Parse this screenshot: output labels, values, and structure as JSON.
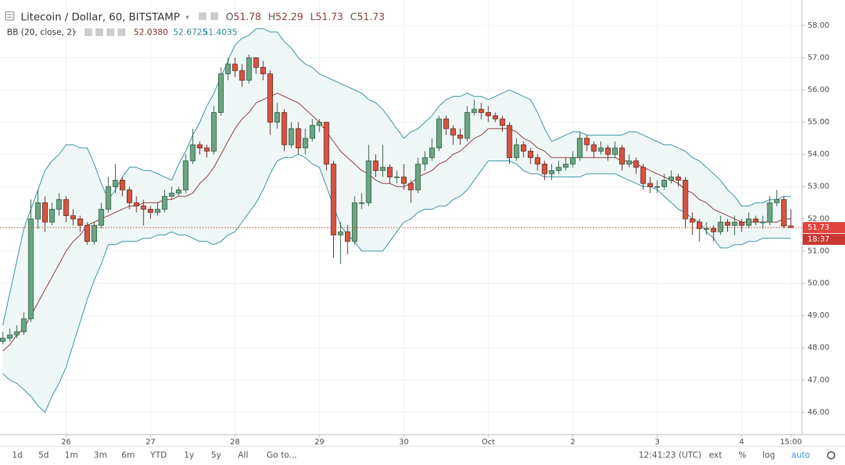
{
  "chart_data": {
    "type": "candlestick",
    "title": "Litecoin / Dollar, 60, BITSTAMP",
    "ohlc_labels": [
      "O",
      "H",
      "L",
      "C"
    ],
    "categories": [
      null,
      null,
      null,
      null,
      null,
      null,
      null,
      null,
      null,
      "26",
      null,
      null,
      null,
      null,
      null,
      null,
      null,
      null,
      null,
      null,
      null,
      "27",
      null,
      null,
      null,
      null,
      null,
      null,
      null,
      null,
      null,
      null,
      null,
      "28",
      null,
      null,
      null,
      null,
      null,
      null,
      null,
      null,
      null,
      null,
      null,
      "29",
      null,
      null,
      null,
      null,
      null,
      null,
      null,
      null,
      null,
      null,
      null,
      "30",
      null,
      null,
      null,
      null,
      null,
      null,
      null,
      null,
      null,
      null,
      null,
      "Oct",
      null,
      null,
      null,
      null,
      null,
      null,
      null,
      null,
      null,
      null,
      null,
      "2",
      null,
      null,
      null,
      null,
      null,
      null,
      null,
      null,
      null,
      null,
      null,
      "3",
      null,
      null,
      null,
      null,
      null,
      null,
      null,
      null,
      null,
      null,
      null,
      "4",
      null,
      null,
      null,
      null,
      null,
      null,
      "15:00"
    ],
    "open": [
      48.2,
      48.3,
      48.4,
      48.5,
      48.9,
      52.0,
      52.5,
      51.9,
      52.3,
      52.6,
      52.1,
      52.0,
      51.8,
      51.3,
      51.8,
      52.3,
      53.0,
      53.2,
      52.9,
      52.5,
      52.4,
      52.3,
      52.2,
      52.3,
      52.7,
      52.8,
      52.9,
      53.8,
      54.3,
      54.2,
      54.1,
      55.3,
      56.5,
      56.8,
      56.6,
      56.3,
      57.0,
      56.7,
      56.5,
      55.0,
      55.3,
      54.3,
      54.8,
      54.2,
      54.5,
      54.9,
      55.0,
      53.7,
      51.5,
      51.6,
      51.3,
      52.5,
      52.5,
      53.8,
      53.5,
      53.6,
      53.3,
      53.3,
      53.1,
      52.9,
      53.7,
      53.9,
      54.2,
      55.1,
      54.8,
      54.6,
      54.5,
      55.3,
      55.4,
      55.3,
      55.2,
      55.1,
      54.9,
      53.9,
      54.3,
      54.1,
      53.9,
      53.7,
      53.4,
      53.5,
      53.6,
      53.7,
      53.9,
      54.5,
      54.3,
      54.1,
      54.2,
      54.0,
      54.2,
      53.7,
      53.8,
      53.6,
      53.1,
      53.0,
      53.0,
      53.2,
      53.3,
      53.2,
      52.0,
      51.9,
      51.7,
      51.7,
      51.6,
      51.9,
      51.8,
      51.9,
      51.8,
      52.0,
      51.9,
      51.9,
      52.5,
      52.6,
      51.78
    ],
    "high": [
      48.5,
      48.6,
      48.7,
      49.1,
      52.6,
      52.9,
      52.7,
      52.5,
      52.8,
      52.7,
      52.3,
      52.1,
      51.9,
      51.9,
      52.5,
      53.3,
      53.7,
      53.3,
      53.0,
      52.7,
      52.6,
      52.4,
      52.5,
      52.9,
      53.0,
      53.0,
      54.0,
      54.8,
      54.4,
      54.3,
      55.5,
      56.7,
      57.0,
      57.0,
      56.8,
      57.1,
      57.0,
      56.9,
      56.6,
      55.6,
      55.4,
      55.0,
      55.0,
      54.8,
      55.1,
      55.1,
      55.0,
      53.8,
      51.9,
      51.8,
      52.7,
      52.8,
      54.3,
      54.0,
      54.3,
      53.7,
      53.5,
      53.7,
      53.2,
      53.9,
      54.1,
      54.5,
      55.2,
      55.2,
      54.9,
      54.8,
      55.5,
      55.7,
      55.6,
      55.5,
      55.3,
      55.2,
      55.0,
      54.5,
      54.4,
      54.2,
      54.0,
      53.8,
      53.7,
      53.8,
      53.9,
      54.1,
      54.7,
      54.6,
      54.4,
      54.4,
      54.3,
      54.4,
      54.3,
      54.0,
      53.9,
      53.7,
      53.3,
      53.2,
      53.4,
      53.5,
      53.4,
      53.3,
      52.2,
      52.0,
      51.9,
      51.8,
      52.1,
      52.0,
      52.1,
      52.0,
      52.2,
      52.1,
      52.1,
      52.7,
      52.9,
      52.7,
      52.29
    ],
    "low": [
      48.1,
      48.2,
      48.3,
      48.4,
      48.8,
      51.7,
      51.6,
      51.8,
      52.1,
      51.9,
      51.8,
      51.6,
      51.2,
      51.2,
      51.7,
      52.2,
      52.8,
      52.7,
      52.3,
      52.2,
      51.8,
      52.0,
      52.1,
      52.2,
      52.6,
      52.7,
      52.8,
      53.7,
      54.0,
      53.9,
      54.0,
      55.2,
      56.3,
      56.4,
      56.1,
      56.2,
      56.5,
      56.3,
      54.6,
      54.8,
      54.1,
      54.2,
      54.0,
      54.0,
      54.4,
      54.7,
      53.5,
      50.8,
      50.6,
      50.9,
      51.2,
      52.3,
      52.4,
      53.3,
      53.3,
      53.1,
      53.1,
      52.9,
      52.5,
      52.8,
      53.5,
      53.8,
      54.1,
      54.6,
      54.3,
      54.3,
      54.4,
      55.2,
      55.1,
      55.0,
      55.0,
      54.7,
      53.7,
      53.8,
      53.9,
      53.7,
      53.5,
      53.2,
      53.2,
      53.4,
      53.5,
      53.6,
      53.8,
      54.1,
      53.9,
      54.0,
      53.8,
      53.9,
      53.5,
      53.6,
      53.4,
      52.9,
      52.8,
      52.8,
      52.9,
      53.1,
      53.0,
      51.7,
      51.5,
      51.3,
      51.5,
      51.3,
      51.5,
      51.6,
      51.5,
      51.6,
      51.7,
      51.8,
      51.7,
      51.8,
      52.4,
      51.7,
      51.73
    ],
    "close": [
      48.3,
      48.4,
      48.5,
      48.9,
      52.0,
      52.5,
      51.9,
      52.3,
      52.6,
      52.1,
      52.0,
      51.8,
      51.3,
      51.8,
      52.3,
      53.0,
      53.2,
      52.9,
      52.5,
      52.4,
      52.3,
      52.2,
      52.3,
      52.7,
      52.8,
      52.9,
      53.8,
      54.3,
      54.2,
      54.1,
      55.3,
      56.5,
      56.8,
      56.6,
      56.3,
      57.0,
      56.7,
      56.5,
      55.0,
      55.3,
      54.3,
      54.8,
      54.2,
      54.5,
      54.9,
      55.0,
      53.7,
      51.5,
      51.6,
      51.3,
      52.5,
      52.5,
      53.8,
      53.5,
      53.6,
      53.3,
      53.3,
      53.1,
      52.9,
      53.7,
      53.9,
      54.2,
      55.1,
      54.8,
      54.6,
      54.5,
      55.3,
      55.4,
      55.3,
      55.2,
      55.1,
      54.9,
      53.9,
      54.3,
      54.1,
      53.9,
      53.7,
      53.4,
      53.5,
      53.6,
      53.7,
      53.9,
      54.5,
      54.3,
      54.1,
      54.2,
      54.0,
      54.2,
      53.7,
      53.8,
      53.6,
      53.1,
      53.0,
      53.0,
      53.2,
      53.3,
      53.2,
      52.0,
      51.9,
      51.7,
      51.7,
      51.6,
      51.9,
      51.8,
      51.9,
      51.8,
      52.0,
      51.9,
      51.9,
      52.5,
      52.6,
      51.78,
      51.73
    ],
    "up_color": "#6ba583",
    "up_border": "#225437",
    "down_color": "#d75442",
    "down_border": "#5b1a13",
    "bands": {
      "name": "BB (20, close, 2)",
      "legend_values": [
        "52.0380",
        "52.6725",
        "51.4035"
      ],
      "middle_color": "#8b2d2d",
      "band_color": "#2a8a9a",
      "fill": "#eef6f6",
      "upper": [
        48.7,
        49.7,
        50.7,
        51.7,
        52.3,
        52.9,
        53.5,
        53.8,
        54.0,
        54.3,
        54.3,
        54.2,
        54.2,
        53.7,
        53.1,
        52.6,
        52.9,
        53.3,
        53.6,
        53.6,
        53.5,
        53.5,
        53.4,
        53.3,
        53.2,
        53.7,
        54.1,
        54.6,
        55.0,
        55.5,
        55.9,
        56.4,
        56.9,
        57.4,
        57.6,
        57.7,
        57.9,
        57.9,
        57.8,
        57.8,
        57.5,
        57.3,
        57.0,
        56.8,
        56.7,
        56.5,
        56.4,
        56.3,
        56.2,
        56.1,
        56.0,
        55.9,
        55.7,
        55.6,
        55.4,
        55.1,
        54.8,
        54.5,
        54.7,
        54.8,
        55.0,
        55.2,
        55.5,
        55.7,
        55.8,
        55.8,
        55.9,
        55.8,
        55.8,
        55.7,
        55.8,
        55.9,
        56.0,
        55.9,
        55.8,
        55.7,
        55.3,
        54.8,
        54.4,
        54.5,
        54.6,
        54.7,
        54.7,
        54.6,
        54.6,
        54.6,
        54.6,
        54.6,
        54.6,
        54.7,
        54.7,
        54.6,
        54.5,
        54.4,
        54.3,
        54.3,
        54.2,
        54.1,
        53.9,
        53.8,
        53.6,
        53.4,
        53.2,
        52.9,
        52.7,
        52.4,
        52.4,
        52.5,
        52.5,
        52.6,
        52.6,
        52.7,
        52.7
      ],
      "middle": [
        47.9,
        48.1,
        48.4,
        48.6,
        49.0,
        49.4,
        49.8,
        50.2,
        50.6,
        51.0,
        51.3,
        51.5,
        51.8,
        51.9,
        52.0,
        52.1,
        52.2,
        52.3,
        52.4,
        52.4,
        52.5,
        52.5,
        52.5,
        52.6,
        52.6,
        52.7,
        52.7,
        52.8,
        53.1,
        53.3,
        53.6,
        54.0,
        54.4,
        54.8,
        55.1,
        55.3,
        55.6,
        55.7,
        55.8,
        55.9,
        55.8,
        55.7,
        55.6,
        55.4,
        55.2,
        55.0,
        54.7,
        54.4,
        54.1,
        53.9,
        53.7,
        53.5,
        53.4,
        53.2,
        53.1,
        53.1,
        53.0,
        53.0,
        53.1,
        53.3,
        53.4,
        53.5,
        53.7,
        53.8,
        54.0,
        54.1,
        54.3,
        54.5,
        54.6,
        54.8,
        54.8,
        54.8,
        54.8,
        54.7,
        54.5,
        54.4,
        54.2,
        54.1,
        53.9,
        53.9,
        53.9,
        53.9,
        53.9,
        53.9,
        53.9,
        53.9,
        53.9,
        53.9,
        53.8,
        53.8,
        53.7,
        53.6,
        53.5,
        53.4,
        53.3,
        53.2,
        53.1,
        52.9,
        52.8,
        52.6,
        52.5,
        52.3,
        52.2,
        52.1,
        52.0,
        51.9,
        51.9,
        51.9,
        51.9,
        51.9,
        51.9,
        52.0,
        52.0
      ],
      "lower": [
        47.2,
        47.0,
        46.9,
        46.7,
        46.5,
        46.2,
        46.0,
        46.5,
        46.9,
        47.4,
        48.1,
        48.8,
        49.5,
        50.1,
        50.6,
        51.2,
        51.2,
        51.3,
        51.3,
        51.3,
        51.4,
        51.4,
        51.5,
        51.5,
        51.6,
        51.5,
        51.5,
        51.4,
        51.3,
        51.3,
        51.2,
        51.3,
        51.5,
        51.6,
        51.9,
        52.2,
        52.5,
        52.9,
        53.4,
        53.8,
        53.9,
        53.9,
        54.0,
        53.9,
        53.7,
        53.6,
        53.0,
        52.4,
        51.8,
        51.5,
        51.3,
        51.0,
        51.0,
        51.0,
        51.0,
        51.3,
        51.6,
        51.9,
        52.0,
        52.2,
        52.3,
        52.3,
        52.4,
        52.4,
        52.6,
        52.7,
        52.9,
        53.2,
        53.5,
        53.8,
        53.8,
        53.8,
        53.8,
        53.7,
        53.5,
        53.4,
        53.4,
        53.3,
        53.3,
        53.3,
        53.3,
        53.3,
        53.3,
        53.4,
        53.4,
        53.4,
        53.4,
        53.4,
        53.3,
        53.2,
        53.1,
        53.0,
        53.0,
        52.9,
        52.7,
        52.5,
        52.3,
        52.2,
        52.0,
        51.9,
        51.6,
        51.4,
        51.1,
        51.1,
        51.2,
        51.2,
        51.3,
        51.3,
        51.4,
        51.4,
        51.4,
        51.4,
        51.4
      ]
    },
    "ylim": [
      45.31,
      58.79
    ],
    "yticks": [
      {
        "value": 46,
        "label": "46.00"
      },
      {
        "value": 47,
        "label": "47.00"
      },
      {
        "value": 48,
        "label": "48.00"
      },
      {
        "value": 49,
        "label": "49.00"
      },
      {
        "value": 50,
        "label": "50.00"
      },
      {
        "value": 51,
        "label": "51.00"
      },
      {
        "value": 52,
        "label": "52.00"
      },
      {
        "value": 53,
        "label": "53.00"
      },
      {
        "value": 54,
        "label": "54.00"
      },
      {
        "value": 55,
        "label": "55.00"
      },
      {
        "value": 56,
        "label": "56.00"
      },
      {
        "value": 57,
        "label": "57.00"
      },
      {
        "value": 58,
        "label": "58.00"
      }
    ],
    "grid": true,
    "countdown": "18:37"
  },
  "toolbar": {
    "ranges": [
      "1d",
      "5d",
      "1m",
      "3m",
      "6m",
      "YTD",
      "1y",
      "5y",
      "All"
    ],
    "goto": "Go to...",
    "clock": "12:41:23 (UTC)",
    "options": [
      "ext",
      "%",
      "log",
      "auto"
    ]
  }
}
